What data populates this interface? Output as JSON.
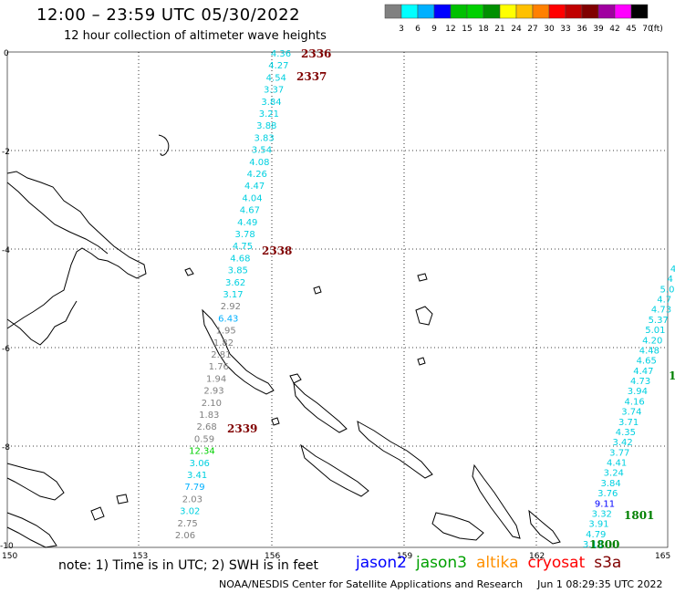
{
  "header": {
    "title": "12:00 – 23:59 UTC 05/30/2022",
    "subtitle": "12 hour collection of altimeter wave heights"
  },
  "colorbar": {
    "colors": [
      "#808080",
      "#00ffff",
      "#00b0ff",
      "#0000ff",
      "#00c000",
      "#00d000",
      "#009000",
      "#ffff00",
      "#ffc000",
      "#ff8000",
      "#ff0000",
      "#c00000",
      "#800000",
      "#a000a0",
      "#ff00ff",
      "#000000"
    ],
    "labels": [
      "3",
      "6",
      "9",
      "12",
      "15",
      "18",
      "21",
      "24",
      "27",
      "30",
      "33",
      "36",
      "39",
      "42",
      "45",
      "70",
      "(ft)"
    ]
  },
  "axes": {
    "lon_labels": [
      "150",
      "153",
      "156",
      "159",
      "162",
      "165"
    ],
    "lat_labels": [
      "0",
      "-2",
      "-4",
      "-6",
      "-8",
      "-10"
    ]
  },
  "tracks": {
    "track1": {
      "heights": [
        "4.36",
        "4.27",
        "4.54",
        "3.37",
        "3.84",
        "3.21",
        "3.88",
        "3.83",
        "3.54",
        "4.08",
        "4.26",
        "4.47",
        "4.04",
        "4.67",
        "4.49",
        "3.78",
        "4.75",
        "4.68",
        "3.85",
        "3.62",
        "3.17",
        "2.92",
        "6.43",
        "1.95",
        "1.82",
        "2.81",
        "1.76",
        "1.94",
        "2.93",
        "2.10",
        "1.83",
        "2.68",
        "0.59",
        "12.34",
        "3.06",
        "3.41",
        "7.79",
        "2.03",
        "3.02",
        "2.75",
        "2.06"
      ],
      "colors": [
        "#00d0e0",
        "#00d0e0",
        "#00d0e0",
        "#00d0e0",
        "#00d0e0",
        "#00d0e0",
        "#00d0e0",
        "#00d0e0",
        "#00d0e0",
        "#00d0e0",
        "#00d0e0",
        "#00d0e0",
        "#00d0e0",
        "#00d0e0",
        "#00d0e0",
        "#00d0e0",
        "#00d0e0",
        "#00d0e0",
        "#00d0e0",
        "#00d0e0",
        "#00d0e0",
        "#808080",
        "#00b0ff",
        "#808080",
        "#808080",
        "#808080",
        "#808080",
        "#808080",
        "#808080",
        "#808080",
        "#808080",
        "#808080",
        "#808080",
        "#00d000",
        "#00d0e0",
        "#00d0e0",
        "#00b0ff",
        "#808080",
        "#00d0e0",
        "#808080",
        "#808080"
      ],
      "times": [
        "2336",
        "2337",
        "2338",
        "2339"
      ]
    },
    "track2": {
      "heights": [
        "4",
        "4",
        "5.0",
        "4.7",
        "4.73",
        "5.37",
        "5.01",
        "4.20",
        "4.48",
        "4.65",
        "4.47",
        "4.73",
        "3.94",
        "4.16",
        "3.74",
        "3.71",
        "4.35",
        "3.42",
        "3.77",
        "4.41",
        "3.24",
        "3.84",
        "3.76",
        "9.11",
        "3.32",
        "3.91",
        "4.79",
        "3.18"
      ],
      "colors": [
        "#00d0e0",
        "#00d0e0",
        "#00d0e0",
        "#00d0e0",
        "#00d0e0",
        "#00d0e0",
        "#00d0e0",
        "#00d0e0",
        "#00d0e0",
        "#00d0e0",
        "#00d0e0",
        "#00d0e0",
        "#00d0e0",
        "#00d0e0",
        "#00d0e0",
        "#00d0e0",
        "#00d0e0",
        "#00d0e0",
        "#00d0e0",
        "#00d0e0",
        "#00d0e0",
        "#00d0e0",
        "#00d0e0",
        "#0000ff",
        "#00d0e0",
        "#00d0e0",
        "#00d0e0",
        "#00d0e0"
      ],
      "times": [
        "1",
        "1801",
        "1800"
      ]
    }
  },
  "note": "note: 1) Time is in UTC; 2) SWH is in feet",
  "legend": [
    {
      "label": "jason2",
      "color": "#0000ff"
    },
    {
      "label": "jason3",
      "color": "#00a000"
    },
    {
      "label": "altika",
      "color": "#ff9000"
    },
    {
      "label": "cryosat",
      "color": "#ff0000"
    },
    {
      "label": "s3a",
      "color": "#800000"
    }
  ],
  "footer": {
    "credit": "NOAA/NESDIS Center for Satellite Applications and Research",
    "date": "Jun  1 08:29:35 UTC 2022"
  }
}
